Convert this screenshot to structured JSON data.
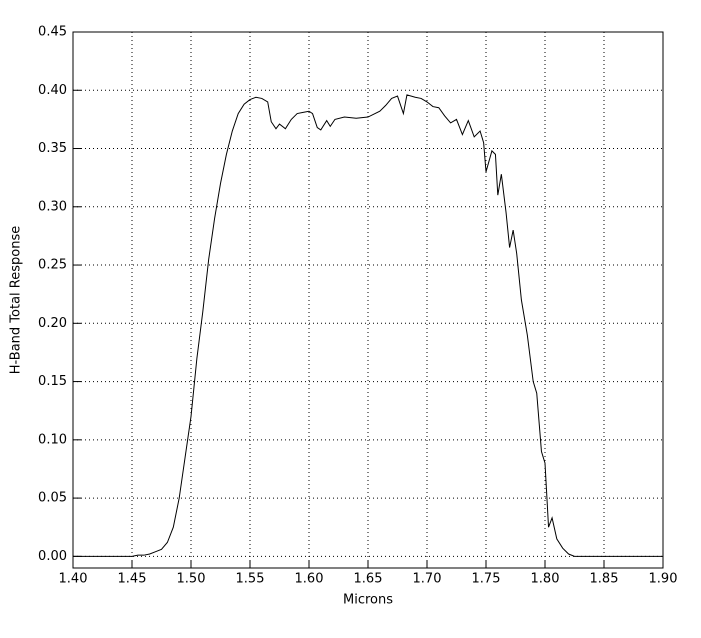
{
  "chart_data": {
    "type": "line",
    "x_label": "Microns",
    "y_label": "H-Band Total Response",
    "xlim": [
      1.4,
      1.9
    ],
    "ylim": [
      -0.01,
      0.45
    ],
    "xticks": [
      {
        "value": 1.4,
        "label": "1.40"
      },
      {
        "value": 1.45,
        "label": "1.45"
      },
      {
        "value": 1.5,
        "label": "1.50"
      },
      {
        "value": 1.55,
        "label": "1.55"
      },
      {
        "value": 1.6,
        "label": "1.60"
      },
      {
        "value": 1.65,
        "label": "1.65"
      },
      {
        "value": 1.7,
        "label": "1.70"
      },
      {
        "value": 1.75,
        "label": "1.75"
      },
      {
        "value": 1.8,
        "label": "1.80"
      },
      {
        "value": 1.85,
        "label": "1.85"
      },
      {
        "value": 1.9,
        "label": "1.90"
      }
    ],
    "yticks": [
      {
        "value": 0,
        "label": "0.00"
      },
      {
        "value": 0.05,
        "label": "0.05"
      },
      {
        "value": 0.1,
        "label": "0.10"
      },
      {
        "value": 0.15,
        "label": "0.15"
      },
      {
        "value": 0.2,
        "label": "0.20"
      },
      {
        "value": 0.25,
        "label": "0.25"
      },
      {
        "value": 0.3,
        "label": "0.30"
      },
      {
        "value": 0.35,
        "label": "0.35"
      },
      {
        "value": 0.4,
        "label": "0.40"
      },
      {
        "value": 0.45,
        "label": "0.45"
      }
    ],
    "grid": true,
    "series": [
      {
        "color": "#000000",
        "x": [
          1.4,
          1.45,
          1.455,
          1.46,
          1.465,
          1.47,
          1.475,
          1.48,
          1.485,
          1.49,
          1.495,
          1.5,
          1.505,
          1.51,
          1.515,
          1.52,
          1.525,
          1.53,
          1.535,
          1.54,
          1.545,
          1.55,
          1.555,
          1.56,
          1.565,
          1.568,
          1.572,
          1.575,
          1.58,
          1.585,
          1.59,
          1.595,
          1.6,
          1.603,
          1.607,
          1.61,
          1.615,
          1.618,
          1.622,
          1.63,
          1.64,
          1.65,
          1.66,
          1.665,
          1.67,
          1.675,
          1.68,
          1.683,
          1.69,
          1.695,
          1.7,
          1.705,
          1.71,
          1.715,
          1.72,
          1.725,
          1.73,
          1.735,
          1.74,
          1.745,
          1.748,
          1.75,
          1.755,
          1.758,
          1.76,
          1.763,
          1.767,
          1.77,
          1.773,
          1.776,
          1.78,
          1.785,
          1.79,
          1.793,
          1.797,
          1.8,
          1.803,
          1.806,
          1.81,
          1.815,
          1.82,
          1.825,
          1.83,
          1.9
        ],
        "values": [
          0,
          0,
          0.001,
          0.001,
          0.002,
          0.004,
          0.006,
          0.012,
          0.025,
          0.05,
          0.085,
          0.12,
          0.17,
          0.21,
          0.255,
          0.29,
          0.32,
          0.345,
          0.365,
          0.38,
          0.388,
          0.392,
          0.394,
          0.393,
          0.39,
          0.373,
          0.367,
          0.371,
          0.367,
          0.375,
          0.38,
          0.381,
          0.382,
          0.38,
          0.368,
          0.366,
          0.374,
          0.369,
          0.375,
          0.377,
          0.376,
          0.377,
          0.382,
          0.387,
          0.393,
          0.395,
          0.38,
          0.396,
          0.394,
          0.393,
          0.39,
          0.386,
          0.385,
          0.378,
          0.372,
          0.375,
          0.362,
          0.374,
          0.36,
          0.365,
          0.355,
          0.33,
          0.348,
          0.345,
          0.31,
          0.328,
          0.295,
          0.265,
          0.28,
          0.26,
          0.22,
          0.19,
          0.15,
          0.14,
          0.09,
          0.08,
          0.025,
          0.033,
          0.015,
          0.007,
          0.002,
          0,
          0,
          0
        ]
      }
    ]
  }
}
